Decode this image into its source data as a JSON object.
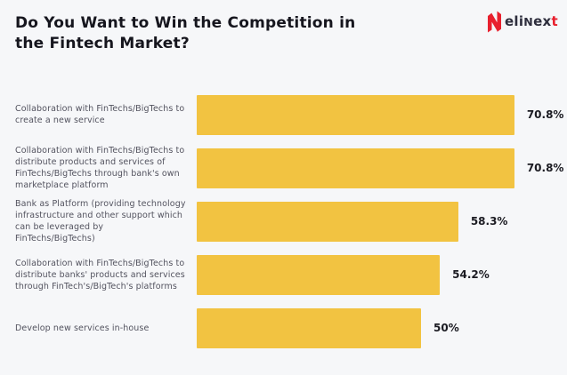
{
  "title_lines": {
    "0": "Do You Want to Win the Competition in",
    "1": "the Fintech Market?"
  },
  "logo": {
    "brand": "elinext",
    "icon": "elinext-n-icon",
    "text_prefix": "eli",
    "text_n": "N",
    "text_mid": "ex",
    "text_accent": "t",
    "accent_color": "#e8202e",
    "text_color": "#2e2e3d"
  },
  "chart_data": {
    "type": "bar",
    "orientation": "horizontal",
    "title": "Do You Want to Win the Competition in the Fintech Market?",
    "xlabel": "",
    "ylabel": "",
    "xlim": [
      0,
      100
    ],
    "grid": false,
    "legend": "none",
    "bar_color": "#f2c341",
    "value_label_position": "right-of-bar",
    "categories": [
      "Collaboration with FinTechs/BigTechs to create a new service",
      "Collaboration with FinTechs/BigTechs to distribute products and services of FinTechs/BigTechs through bank's own marketplace platform",
      "Bank as Platform (providing technology infrastructure and other support which can be leveraged by FinTechs/BigTechs)",
      "Collaboration with FinTechs/BigTechs to distribute banks' products and services through FinTech's/BigTech's platforms",
      "Develop new services in-house"
    ],
    "values": [
      70.8,
      70.8,
      58.3,
      54.2,
      50
    ],
    "value_labels": [
      "70.8%",
      "70.8%",
      "58.3%",
      "54.2%",
      "50%"
    ]
  },
  "style": {
    "background": "#f6f7f9",
    "title_color": "#16161e",
    "label_color": "#53535f",
    "value_color": "#1b1b22"
  }
}
